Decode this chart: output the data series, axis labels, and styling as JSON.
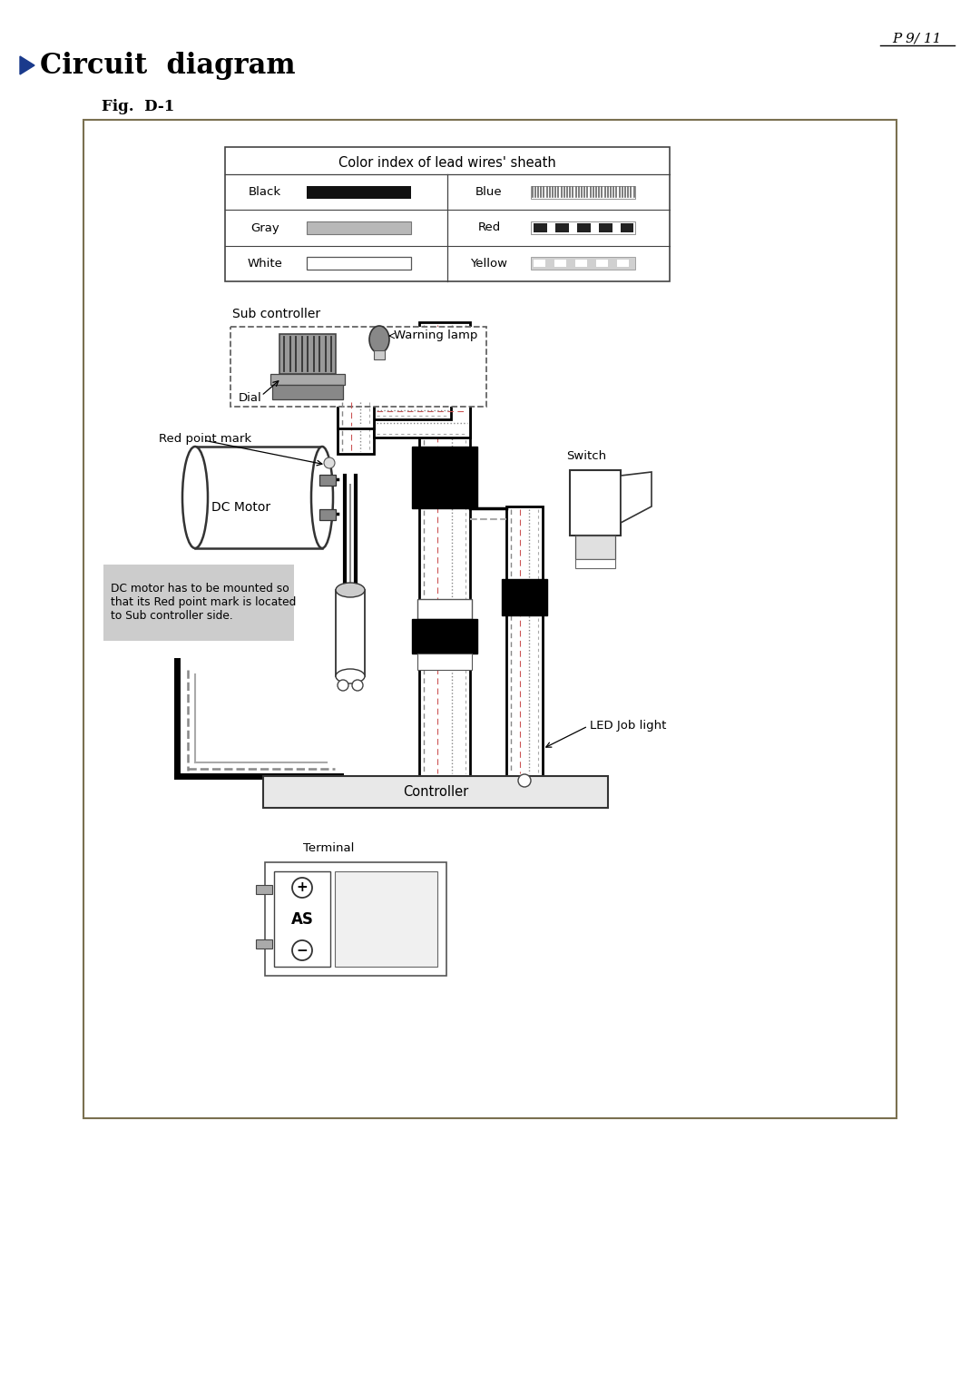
{
  "page_label": "P 9/ 11",
  "title_text": "Circuit  diagram",
  "fig_label": "Fig.  D-1",
  "bg_color": "#ffffff",
  "box_border_color": "#7a7050",
  "table_title": "Color index of lead wires' sheath",
  "wire_rows_left": [
    "Black",
    "Gray",
    "White"
  ],
  "wire_rows_right": [
    "Blue",
    "Red",
    "Yellow"
  ],
  "label_sub_controller": "Sub controller",
  "label_warning_lamp": "Warning lamp",
  "label_dial": "Dial",
  "label_red_point_mark": "Red point mark",
  "label_dc_motor": "DC Motor",
  "label_switch": "Switch",
  "label_led": "LED Job light",
  "label_controller": "Controller",
  "label_terminal": "Terminal",
  "note_text": "DC motor has to be mounted so\nthat its Red point mark is located\nto Sub controller side."
}
